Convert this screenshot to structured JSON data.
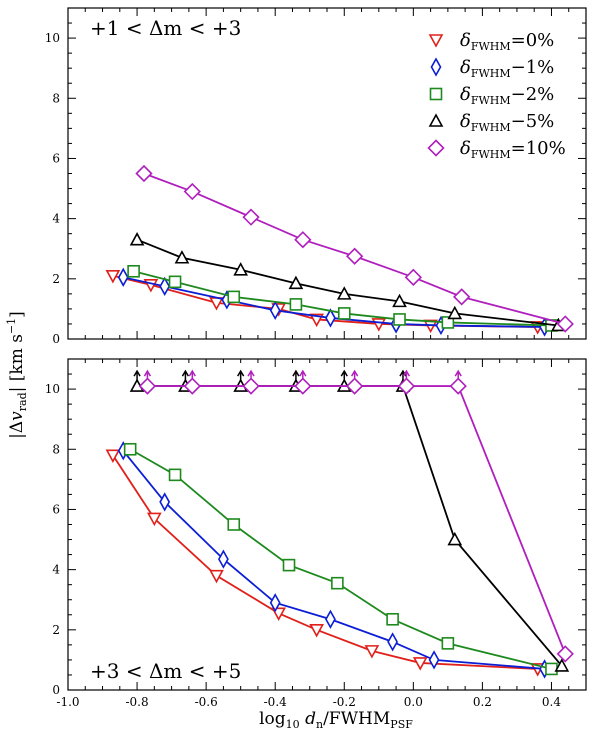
{
  "chart_data": [
    {
      "type": "line",
      "panel_label": "+1 < Δm < +3",
      "xlim": [
        -1.0,
        0.5
      ],
      "ylim": [
        0,
        11
      ],
      "x_ticks": [
        "-1.0",
        "-0.8",
        "-0.6",
        "-0.4",
        "-0.2",
        "0.0",
        "0.2",
        "0.4"
      ],
      "y_ticks": [
        "0",
        "2",
        "4",
        "6",
        "8",
        "10"
      ],
      "show_x_tick_labels": false,
      "legend_position": "top-right",
      "series": [
        {
          "name": "δFWHM = 0%",
          "label_main": "δ",
          "label_sub": "FWHM",
          "label_rest": "=0%",
          "color": "#e0211b",
          "marker": "triangle-down",
          "x": [
            -0.87,
            -0.76,
            -0.57,
            -0.39,
            -0.28,
            -0.1,
            0.05,
            0.36
          ],
          "y": [
            2.1,
            1.8,
            1.2,
            1.0,
            0.65,
            0.5,
            0.45,
            0.4
          ]
        },
        {
          "name": "δFWHM −1%",
          "label_main": "δ",
          "label_sub": "FWHM",
          "label_rest": "−1%",
          "color": "#0b1ed6",
          "marker": "diamond",
          "x": [
            -0.84,
            -0.72,
            -0.54,
            -0.4,
            -0.24,
            -0.05,
            0.08,
            0.38
          ],
          "y": [
            2.05,
            1.75,
            1.3,
            0.95,
            0.7,
            0.5,
            0.45,
            0.4
          ]
        },
        {
          "name": "δFWHM −2%",
          "label_main": "δ",
          "label_sub": "FWHM",
          "label_rest": "−2%",
          "color": "#1e8a1e",
          "marker": "square",
          "x": [
            -0.81,
            -0.69,
            -0.52,
            -0.34,
            -0.2,
            -0.04,
            0.1,
            0.4
          ],
          "y": [
            2.25,
            1.9,
            1.4,
            1.15,
            0.85,
            0.65,
            0.55,
            0.45
          ]
        },
        {
          "name": "δFWHM −5%",
          "label_main": "δ",
          "label_sub": "FWHM",
          "label_rest": "−5%",
          "color": "#000000",
          "marker": "triangle-up",
          "x": [
            -0.8,
            -0.67,
            -0.5,
            -0.34,
            -0.2,
            -0.04,
            0.12,
            0.42
          ],
          "y": [
            3.3,
            2.7,
            2.3,
            1.85,
            1.5,
            1.25,
            0.85,
            0.45
          ]
        },
        {
          "name": "δFWHM =10%",
          "label_main": "δ",
          "label_sub": "FWHM",
          "label_rest": "=10%",
          "color": "#b01fbd",
          "marker": "diamond-large",
          "x": [
            -0.78,
            -0.64,
            -0.47,
            -0.32,
            -0.17,
            0.0,
            0.14,
            0.44
          ],
          "y": [
            5.5,
            4.9,
            4.05,
            3.3,
            2.75,
            2.05,
            1.4,
            0.5
          ]
        }
      ]
    },
    {
      "type": "line",
      "panel_label": "+3 < Δm < +5",
      "xlim": [
        -1.0,
        0.5
      ],
      "ylim": [
        0,
        11
      ],
      "x_ticks": [
        "-1.0",
        "-0.8",
        "-0.6",
        "-0.4",
        "-0.2",
        "0.0",
        "0.2",
        "0.4"
      ],
      "y_ticks": [
        "0",
        "2",
        "4",
        "6",
        "8",
        "10"
      ],
      "show_x_tick_labels": true,
      "xlabel_main": "log",
      "xlabel_sub1": "10",
      "xlabel_mid": " d",
      "xlabel_sub2": "n",
      "xlabel_rest": "/FWHM",
      "xlabel_sub3": "PSF",
      "series": [
        {
          "name": "δFWHM = 0%",
          "color": "#e0211b",
          "marker": "triangle-down",
          "x": [
            -0.87,
            -0.75,
            -0.57,
            -0.39,
            -0.28,
            -0.12,
            0.02,
            0.36
          ],
          "y": [
            7.8,
            5.7,
            3.8,
            2.55,
            2.0,
            1.3,
            0.9,
            0.7
          ],
          "upper_limit": [
            false,
            false,
            false,
            false,
            false,
            false,
            false,
            false
          ]
        },
        {
          "name": "δFWHM −1%",
          "color": "#0b1ed6",
          "marker": "diamond",
          "x": [
            -0.84,
            -0.72,
            -0.55,
            -0.4,
            -0.24,
            -0.06,
            0.06,
            0.38
          ],
          "y": [
            7.95,
            6.25,
            4.35,
            2.9,
            2.35,
            1.6,
            1.0,
            0.7
          ],
          "upper_limit": [
            false,
            false,
            false,
            false,
            false,
            false,
            false,
            false
          ]
        },
        {
          "name": "δFWHM −2%",
          "color": "#1e8a1e",
          "marker": "square",
          "x": [
            -0.82,
            -0.69,
            -0.52,
            -0.36,
            -0.22,
            -0.06,
            0.1,
            0.4
          ],
          "y": [
            8.0,
            7.15,
            5.5,
            4.15,
            3.55,
            2.35,
            1.55,
            0.7
          ],
          "upper_limit": [
            false,
            false,
            false,
            false,
            false,
            false,
            false,
            false
          ]
        },
        {
          "name": "δFWHM −5%",
          "color": "#000000",
          "marker": "triangle-up",
          "x": [
            -0.8,
            -0.66,
            -0.5,
            -0.34,
            -0.2,
            -0.03,
            0.12,
            0.43
          ],
          "y": [
            10.1,
            10.1,
            10.1,
            10.1,
            10.1,
            10.1,
            5.0,
            0.8
          ],
          "upper_limit": [
            true,
            true,
            true,
            true,
            true,
            true,
            false,
            false
          ]
        },
        {
          "name": "δFWHM =10%",
          "color": "#b01fbd",
          "marker": "diamond-large",
          "x": [
            -0.77,
            -0.64,
            -0.47,
            -0.32,
            -0.17,
            -0.02,
            0.13,
            0.44
          ],
          "y": [
            10.1,
            10.1,
            10.1,
            10.1,
            10.1,
            10.1,
            10.1,
            1.2
          ],
          "upper_limit": [
            true,
            true,
            true,
            true,
            true,
            true,
            true,
            false
          ]
        }
      ]
    }
  ],
  "ylabel_parts": {
    "left": "|Δ",
    "v": "v",
    "sub": "rad",
    "right": "| [km s",
    "sup": "−1",
    "end": "]"
  }
}
